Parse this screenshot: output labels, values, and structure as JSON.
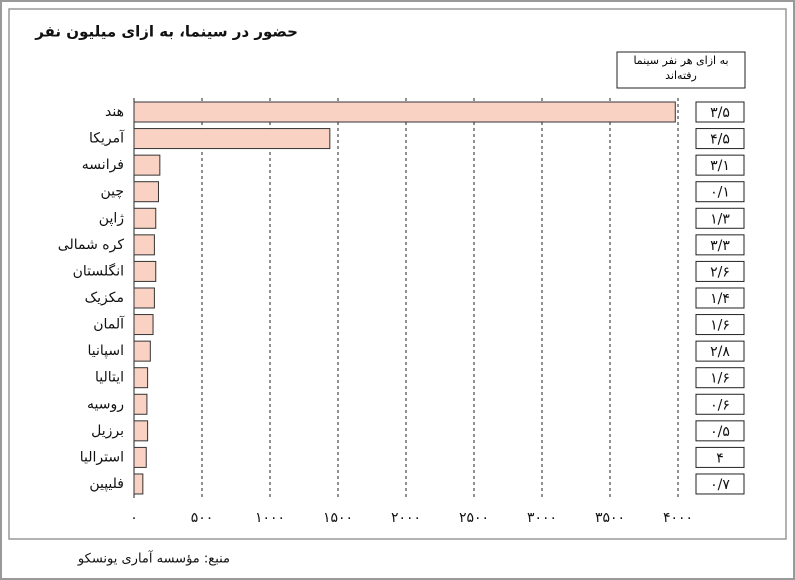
{
  "chart_data": {
    "type": "bar",
    "orientation": "horizontal",
    "title": "حضور در سینما، به ازای میلیون نفر",
    "source": "منبع: مؤسسه آماری یونسکو",
    "categories": [
      "هند",
      "آمریکا",
      "فرانسه",
      "چین",
      "ژاپن",
      "کره شمالی",
      "انگلستان",
      "مکزیک",
      "آلمان",
      "اسپانیا",
      "ایتالیا",
      "روسیه",
      "برزیل",
      "استرالیا",
      "فلیپین"
    ],
    "values": [
      3980,
      1440,
      190,
      180,
      160,
      150,
      160,
      150,
      140,
      120,
      100,
      95,
      100,
      90,
      65
    ],
    "color": "#f9d2c4",
    "xlim": [
      0,
      4000
    ],
    "xticks": [
      {
        "value": 0,
        "label": "۰"
      },
      {
        "value": 500,
        "label": "۵۰۰"
      },
      {
        "value": 1000,
        "label": "۱۰۰۰"
      },
      {
        "value": 1500,
        "label": "۱۵۰۰"
      },
      {
        "value": 2000,
        "label": "۲۰۰۰"
      },
      {
        "value": 2500,
        "label": "۲۵۰۰"
      },
      {
        "value": 3000,
        "label": "۳۰۰۰"
      },
      {
        "value": 3500,
        "label": "۳۵۰۰"
      },
      {
        "value": 4000,
        "label": "۴۰۰۰"
      }
    ],
    "grid": true,
    "per_person": {
      "title": "به ازای هر نفر سینما رفته‌اند",
      "values": [
        3.5,
        4.5,
        3.1,
        0.1,
        1.3,
        3.3,
        2.6,
        1.4,
        1.6,
        2.8,
        1.6,
        0.6,
        0.5,
        4,
        0.7
      ],
      "value_labels": [
        "۳/۵",
        "۴/۵",
        "۳/۱",
        "۰/۱",
        "۱/۳",
        "۳/۳",
        "۲/۶",
        "۱/۴",
        "۱/۶",
        "۲/۸",
        "۱/۶",
        "۰/۶",
        "۰/۵",
        "۴",
        "۰/۷"
      ]
    }
  }
}
